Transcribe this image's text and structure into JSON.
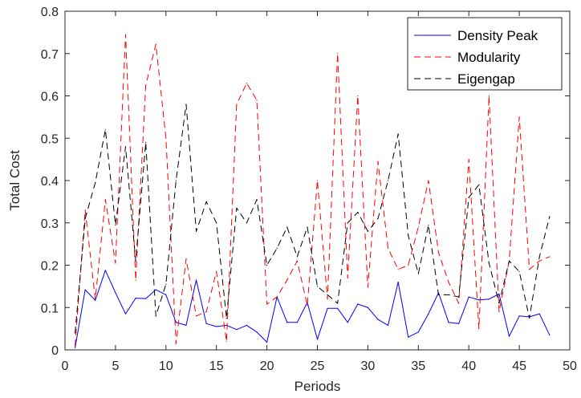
{
  "chart_data": {
    "type": "line",
    "title": "",
    "xlabel": "Periods",
    "ylabel": "Total Cost",
    "xlim": [
      0,
      50
    ],
    "ylim": [
      0,
      0.8
    ],
    "xticks": [
      "0",
      "5",
      "10",
      "15",
      "20",
      "25",
      "30",
      "35",
      "40",
      "45",
      "50"
    ],
    "yticks": [
      "0",
      "0.1",
      "0.2",
      "0.3",
      "0.4",
      "0.5",
      "0.6",
      "0.7",
      "0.8"
    ],
    "grid": false,
    "legend_position": "top-right",
    "x": [
      1,
      2,
      3,
      4,
      5,
      6,
      7,
      8,
      9,
      10,
      11,
      12,
      13,
      14,
      15,
      16,
      17,
      18,
      19,
      20,
      21,
      22,
      23,
      24,
      25,
      26,
      27,
      28,
      29,
      30,
      31,
      32,
      33,
      34,
      35,
      36,
      37,
      38,
      39,
      40,
      41,
      42,
      43,
      44,
      45,
      46,
      47,
      48
    ],
    "series": [
      {
        "name": "Density Peak",
        "color": "#0000ff",
        "style": "solid",
        "values": [
          0.005,
          0.142,
          0.117,
          0.188,
          0.135,
          0.085,
          0.122,
          0.121,
          0.142,
          0.13,
          0.065,
          0.058,
          0.165,
          0.062,
          0.055,
          0.058,
          0.048,
          0.058,
          0.042,
          0.018,
          0.125,
          0.065,
          0.065,
          0.112,
          0.025,
          0.098,
          0.098,
          0.065,
          0.108,
          0.1,
          0.072,
          0.058,
          0.16,
          0.03,
          0.042,
          0.085,
          0.135,
          0.065,
          0.062,
          0.125,
          0.118,
          0.12,
          0.132,
          0.032,
          0.08,
          0.078,
          0.085,
          0.035
        ]
      },
      {
        "name": "Modularity",
        "color": "#ff0000",
        "style": "dashed",
        "values": [
          0.01,
          0.33,
          0.12,
          0.355,
          0.205,
          0.745,
          0.165,
          0.625,
          0.722,
          0.5,
          0.015,
          0.215,
          0.08,
          0.09,
          0.185,
          0.02,
          0.58,
          0.63,
          0.59,
          0.108,
          0.125,
          0.165,
          0.21,
          0.105,
          0.4,
          0.12,
          0.7,
          0.17,
          0.6,
          0.148,
          0.445,
          0.24,
          0.19,
          0.2,
          0.29,
          0.4,
          0.23,
          0.16,
          0.11,
          0.45,
          0.05,
          0.6,
          0.09,
          0.21,
          0.55,
          0.19,
          0.21,
          0.22
        ]
      },
      {
        "name": "Eigengap",
        "color": "#000000",
        "style": "dashed",
        "values": [
          0.04,
          0.31,
          0.395,
          0.52,
          0.295,
          0.48,
          0.21,
          0.49,
          0.08,
          0.155,
          0.4,
          0.58,
          0.28,
          0.35,
          0.3,
          0.075,
          0.335,
          0.3,
          0.355,
          0.2,
          0.24,
          0.29,
          0.22,
          0.29,
          0.15,
          0.13,
          0.11,
          0.3,
          0.325,
          0.28,
          0.31,
          0.4,
          0.51,
          0.27,
          0.18,
          0.295,
          0.13,
          0.13,
          0.125,
          0.36,
          0.39,
          0.205,
          0.11,
          0.21,
          0.185,
          0.075,
          0.22,
          0.315
        ]
      }
    ]
  }
}
